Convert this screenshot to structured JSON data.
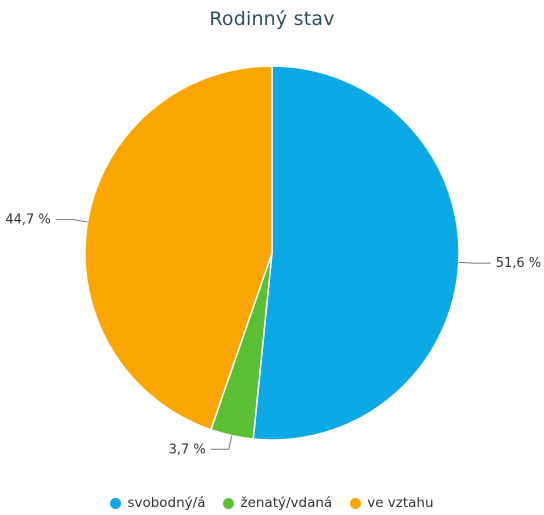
{
  "chart_data": {
    "type": "pie",
    "title": "Rodinný stav",
    "categories": [
      "svobodný/á",
      "ženatý/vdaná",
      "ve vztahu"
    ],
    "values": [
      51.6,
      3.7,
      44.7
    ],
    "value_labels": [
      "51,6 %",
      "3,7 %",
      "44,7 %"
    ],
    "colors": [
      "#0ba8e6",
      "#5bbf35",
      "#faa500"
    ],
    "legend_position": "bottom"
  }
}
